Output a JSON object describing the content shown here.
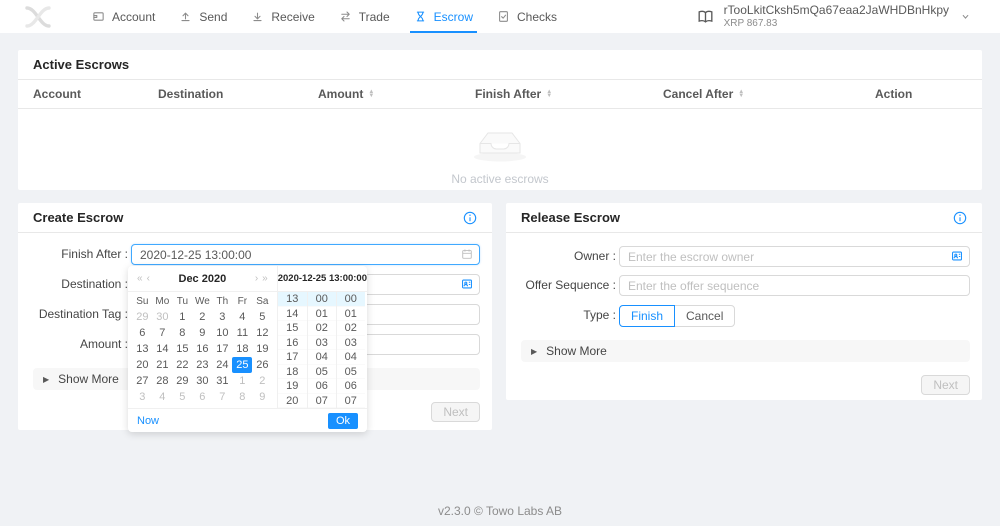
{
  "header": {
    "nav": [
      {
        "label": "Account",
        "icon": "account-icon",
        "active": false
      },
      {
        "label": "Send",
        "icon": "send-icon",
        "active": false
      },
      {
        "label": "Receive",
        "icon": "receive-icon",
        "active": false
      },
      {
        "label": "Trade",
        "icon": "trade-icon",
        "active": false
      },
      {
        "label": "Escrow",
        "icon": "escrow-icon",
        "active": true
      },
      {
        "label": "Checks",
        "icon": "checks-icon",
        "active": false
      }
    ],
    "wallet": {
      "address": "rTooLkitCksh5mQa67eaa2JaWHDBnHkpy",
      "balance": "XRP 867.83"
    }
  },
  "active_escrows": {
    "title": "Active Escrows",
    "columns": [
      {
        "label": "Account",
        "sortable": false
      },
      {
        "label": "Destination",
        "sortable": false
      },
      {
        "label": "Amount",
        "sortable": true
      },
      {
        "label": "Finish After",
        "sortable": true
      },
      {
        "label": "Cancel After",
        "sortable": true
      },
      {
        "label": "Action",
        "sortable": false
      }
    ],
    "empty_text": "No active escrows"
  },
  "create_escrow": {
    "title": "Create Escrow",
    "finish_after_label": "Finish After :",
    "finish_after_value": "2020-12-25 13:00:00",
    "destination_label": "Destination :",
    "destination_tag_label": "Destination Tag :",
    "amount_label": "Amount :",
    "show_more": "Show More",
    "next": "Next"
  },
  "date_picker": {
    "month": "Dec",
    "year": "2020",
    "time_header": "2020-12-25 13:00:00",
    "weekdays": [
      "Su",
      "Mo",
      "Tu",
      "We",
      "Th",
      "Fr",
      "Sa"
    ],
    "days": [
      {
        "v": "29",
        "state": "muted"
      },
      {
        "v": "30",
        "state": "muted"
      },
      {
        "v": "1",
        "state": ""
      },
      {
        "v": "2",
        "state": ""
      },
      {
        "v": "3",
        "state": ""
      },
      {
        "v": "4",
        "state": ""
      },
      {
        "v": "5",
        "state": ""
      },
      {
        "v": "6",
        "state": ""
      },
      {
        "v": "7",
        "state": ""
      },
      {
        "v": "8",
        "state": ""
      },
      {
        "v": "9",
        "state": ""
      },
      {
        "v": "10",
        "state": ""
      },
      {
        "v": "11",
        "state": ""
      },
      {
        "v": "12",
        "state": ""
      },
      {
        "v": "13",
        "state": ""
      },
      {
        "v": "14",
        "state": ""
      },
      {
        "v": "15",
        "state": ""
      },
      {
        "v": "16",
        "state": ""
      },
      {
        "v": "17",
        "state": ""
      },
      {
        "v": "18",
        "state": ""
      },
      {
        "v": "19",
        "state": ""
      },
      {
        "v": "20",
        "state": ""
      },
      {
        "v": "21",
        "state": ""
      },
      {
        "v": "22",
        "state": ""
      },
      {
        "v": "23",
        "state": ""
      },
      {
        "v": "24",
        "state": ""
      },
      {
        "v": "25",
        "state": "selected"
      },
      {
        "v": "26",
        "state": ""
      },
      {
        "v": "27",
        "state": ""
      },
      {
        "v": "28",
        "state": ""
      },
      {
        "v": "29",
        "state": ""
      },
      {
        "v": "30",
        "state": ""
      },
      {
        "v": "31",
        "state": ""
      },
      {
        "v": "1",
        "state": "muted"
      },
      {
        "v": "2",
        "state": "muted"
      },
      {
        "v": "3",
        "state": "muted"
      },
      {
        "v": "4",
        "state": "muted"
      },
      {
        "v": "5",
        "state": "muted"
      },
      {
        "v": "6",
        "state": "muted"
      },
      {
        "v": "7",
        "state": "muted"
      },
      {
        "v": "8",
        "state": "muted"
      },
      {
        "v": "9",
        "state": "muted"
      }
    ],
    "hours": [
      "13",
      "14",
      "15",
      "16",
      "17",
      "18",
      "19",
      "20"
    ],
    "minutes": [
      "00",
      "01",
      "02",
      "03",
      "04",
      "05",
      "06",
      "07"
    ],
    "seconds": [
      "00",
      "01",
      "02",
      "03",
      "04",
      "05",
      "06",
      "07"
    ],
    "now": "Now",
    "ok": "Ok"
  },
  "release_escrow": {
    "title": "Release Escrow",
    "owner_label": "Owner :",
    "owner_placeholder": "Enter the escrow owner",
    "offer_label": "Offer Sequence :",
    "offer_placeholder": "Enter the offer sequence",
    "type_label": "Type :",
    "type_options": [
      {
        "label": "Finish",
        "checked": true
      },
      {
        "label": "Cancel",
        "checked": false
      }
    ],
    "show_more": "Show More",
    "next": "Next"
  },
  "footer": {
    "version": "v2.3.0 © Towo Labs AB"
  },
  "colors": {
    "primary": "#1890ff",
    "page_bg": "#f0f2f5",
    "selected_time_bg": "#e6f7ff"
  }
}
